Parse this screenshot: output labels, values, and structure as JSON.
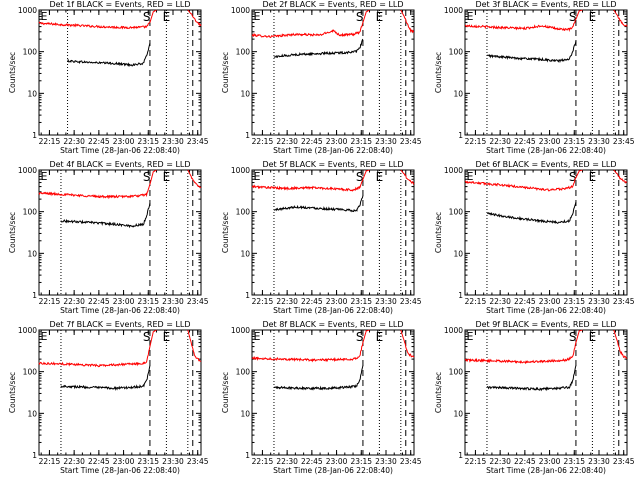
{
  "chart_data": [
    {
      "type": "line",
      "title": "Det 1f BLACK = Events, RED = LLD",
      "ylabel": "Counts/sec",
      "xlabel": "Start Time (28-Jan-06 22:08:40)",
      "yscale": "log",
      "ylim": [
        1,
        1000
      ],
      "yticks": [
        "1",
        "10",
        "100",
        "1000"
      ],
      "xlim": [
        "22:08:40",
        "23:47:00"
      ],
      "xticks": [
        "22:15",
        "22:30",
        "22:45",
        "23:00",
        "23:15",
        "23:30",
        "23:45"
      ],
      "series": [
        {
          "x": [
            "22:08:40",
            "22:30",
            "22:45",
            "23:00",
            "23:10",
            "23:14",
            "23:16",
            "23:18",
            "23:20"
          ],
          "y": [
            480,
            430,
            400,
            380,
            385,
            395,
            500,
            900,
            1000
          ]
        },
        {
          "x": [
            "22:26",
            "22:40",
            "22:55",
            "23:05",
            "23:12",
            "23:14",
            "23:16"
          ],
          "y": [
            60,
            55,
            52,
            48,
            52,
            80,
            160
          ]
        },
        {
          "x": [
            "23:39",
            "23:41",
            "23:43",
            "23:45",
            "23:47"
          ],
          "y": [
            1000,
            800,
            600,
            480,
            420
          ]
        }
      ],
      "markers": [
        {
          "label": "S",
          "time": "23:14"
        },
        {
          "label": "E",
          "time": "23:26"
        }
      ],
      "dotted_lines": [
        "22:26",
        "23:26",
        "23:39"
      ],
      "dashed_lines": [
        "23:16",
        "23:42"
      ]
    },
    {
      "type": "line",
      "title": "Det 2f BLACK = Events, RED = LLD",
      "ylabel": "Counts/sec",
      "xlabel": "Start Time (28-Jan-06 22:08:40)",
      "yscale": "log",
      "ylim": [
        1,
        1000
      ],
      "yticks": [
        "1",
        "10",
        "100",
        "1000"
      ],
      "xlim": [
        "22:08:40",
        "23:47:00"
      ],
      "xticks": [
        "22:15",
        "22:30",
        "22:45",
        "23:00",
        "23:15",
        "23:30",
        "23:45"
      ],
      "series": [
        {
          "x": [
            "22:08:40",
            "22:20",
            "22:35",
            "22:50",
            "22:58",
            "23:02",
            "23:10",
            "23:14",
            "23:16",
            "23:18",
            "23:20"
          ],
          "y": [
            250,
            230,
            260,
            250,
            320,
            250,
            260,
            290,
            500,
            900,
            1000
          ]
        },
        {
          "x": [
            "22:22",
            "22:35",
            "22:50",
            "23:05",
            "23:12",
            "23:14",
            "23:16"
          ],
          "y": [
            75,
            85,
            90,
            95,
            100,
            120,
            200
          ]
        },
        {
          "x": [
            "23:39",
            "23:41",
            "23:43",
            "23:45",
            "23:47"
          ],
          "y": [
            1000,
            700,
            450,
            320,
            300
          ]
        }
      ],
      "markers": [
        {
          "label": "S",
          "time": "23:14"
        },
        {
          "label": "E",
          "time": "23:26"
        }
      ],
      "dotted_lines": [
        "22:22",
        "23:26",
        "23:39"
      ],
      "dashed_lines": [
        "23:16",
        "23:42"
      ]
    },
    {
      "type": "line",
      "title": "Det 3f BLACK = Events, RED = LLD",
      "ylabel": "Counts/sec",
      "xlabel": "Start Time (28-Jan-06 22:08:40)",
      "yscale": "log",
      "ylim": [
        1,
        1000
      ],
      "yticks": [
        "1",
        "10",
        "100",
        "1000"
      ],
      "xlim": [
        "22:08:40",
        "23:47:00"
      ],
      "xticks": [
        "22:15",
        "22:30",
        "22:45",
        "23:00",
        "23:15",
        "23:30",
        "23:45"
      ],
      "series": [
        {
          "x": [
            "22:08:40",
            "22:30",
            "22:45",
            "22:55",
            "23:05",
            "23:12",
            "23:14",
            "23:16",
            "23:18",
            "23:20"
          ],
          "y": [
            420,
            380,
            360,
            420,
            350,
            340,
            380,
            600,
            950,
            1000
          ]
        },
        {
          "x": [
            "22:22",
            "22:40",
            "22:55",
            "23:05",
            "23:12",
            "23:14",
            "23:16"
          ],
          "y": [
            80,
            70,
            65,
            60,
            65,
            100,
            180
          ]
        },
        {
          "x": [
            "23:39",
            "23:41",
            "23:43",
            "23:45",
            "23:47"
          ],
          "y": [
            1000,
            750,
            550,
            450,
            400
          ]
        }
      ],
      "markers": [
        {
          "label": "S",
          "time": "23:14"
        },
        {
          "label": "E",
          "time": "23:26"
        }
      ],
      "dotted_lines": [
        "22:22",
        "23:26",
        "23:39"
      ],
      "dashed_lines": [
        "23:16",
        "23:42"
      ]
    },
    {
      "type": "line",
      "title": "Det 4f BLACK = Events, RED = LLD",
      "ylabel": "Counts/sec",
      "xlabel": "Start Time (28-Jan-06 22:08:40)",
      "yscale": "log",
      "ylim": [
        1,
        1000
      ],
      "yticks": [
        "1",
        "10",
        "100",
        "1000"
      ],
      "xlim": [
        "22:08:40",
        "23:47:00"
      ],
      "xticks": [
        "22:15",
        "22:30",
        "22:45",
        "23:00",
        "23:15",
        "23:30",
        "23:45"
      ],
      "series": [
        {
          "x": [
            "22:08:40",
            "22:30",
            "22:45",
            "23:00",
            "23:10",
            "23:14",
            "23:16",
            "23:18",
            "23:20"
          ],
          "y": [
            280,
            250,
            230,
            230,
            240,
            260,
            450,
            900,
            1000
          ]
        },
        {
          "x": [
            "22:22",
            "22:40",
            "22:55",
            "23:05",
            "23:12",
            "23:14",
            "23:16"
          ],
          "y": [
            60,
            55,
            50,
            45,
            50,
            80,
            160
          ]
        },
        {
          "x": [
            "23:39",
            "23:41",
            "23:43",
            "23:45",
            "23:47"
          ],
          "y": [
            1000,
            700,
            500,
            420,
            380
          ]
        }
      ],
      "markers": [
        {
          "label": "S",
          "time": "23:14"
        },
        {
          "label": "E",
          "time": "23:26"
        }
      ],
      "dotted_lines": [
        "22:22",
        "23:26",
        "23:39"
      ],
      "dashed_lines": [
        "23:16",
        "23:42"
      ]
    },
    {
      "type": "line",
      "title": "Det 5f BLACK = Events, RED = LLD",
      "ylabel": "Counts/sec",
      "xlabel": "Start Time (28-Jan-06 22:08:40)",
      "yscale": "log",
      "ylim": [
        1,
        1000
      ],
      "yticks": [
        "1",
        "10",
        "100",
        "1000"
      ],
      "xlim": [
        "22:08:40",
        "23:47:00"
      ],
      "xticks": [
        "22:15",
        "22:30",
        "22:45",
        "23:00",
        "23:15",
        "23:30",
        "23:45"
      ],
      "series": [
        {
          "x": [
            "22:08:40",
            "22:30",
            "22:45",
            "23:00",
            "23:10",
            "23:14",
            "23:16",
            "23:18",
            "23:20"
          ],
          "y": [
            400,
            360,
            380,
            350,
            330,
            380,
            600,
            950,
            1000
          ]
        },
        {
          "x": [
            "22:22",
            "22:35",
            "22:50",
            "23:05",
            "23:12",
            "23:14",
            "23:16"
          ],
          "y": [
            110,
            130,
            120,
            110,
            105,
            140,
            240
          ]
        },
        {
          "x": [
            "23:39",
            "23:41",
            "23:43",
            "23:45",
            "23:47"
          ],
          "y": [
            1000,
            800,
            600,
            520,
            480
          ]
        }
      ],
      "markers": [
        {
          "label": "S",
          "time": "23:14"
        },
        {
          "label": "E",
          "time": "23:26"
        }
      ],
      "dotted_lines": [
        "22:22",
        "23:26",
        "23:39"
      ],
      "dashed_lines": [
        "23:16",
        "23:42"
      ]
    },
    {
      "type": "line",
      "title": "Det 6f BLACK = Events, RED = LLD",
      "ylabel": "Counts/sec",
      "xlabel": "Start Time (28-Jan-06 22:08:40)",
      "yscale": "log",
      "ylim": [
        1,
        1000
      ],
      "yticks": [
        "1",
        "10",
        "100",
        "1000"
      ],
      "xlim": [
        "22:08:40",
        "23:47:00"
      ],
      "xticks": [
        "22:15",
        "22:30",
        "22:45",
        "23:00",
        "23:15",
        "23:30",
        "23:45"
      ],
      "series": [
        {
          "x": [
            "22:08:40",
            "22:30",
            "22:45",
            "23:00",
            "23:10",
            "23:14",
            "23:16",
            "23:18",
            "23:20"
          ],
          "y": [
            520,
            440,
            380,
            330,
            360,
            400,
            650,
            950,
            1000
          ]
        },
        {
          "x": [
            "22:22",
            "22:40",
            "22:55",
            "23:05",
            "23:12",
            "23:14",
            "23:16"
          ],
          "y": [
            90,
            70,
            60,
            55,
            60,
            90,
            170
          ]
        },
        {
          "x": [
            "23:39",
            "23:41",
            "23:43",
            "23:45",
            "23:47"
          ],
          "y": [
            1000,
            800,
            620,
            540,
            500
          ]
        }
      ],
      "markers": [
        {
          "label": "S",
          "time": "23:14"
        },
        {
          "label": "E",
          "time": "23:26"
        }
      ],
      "dotted_lines": [
        "22:22",
        "23:26",
        "23:39"
      ],
      "dashed_lines": [
        "23:16",
        "23:42"
      ]
    },
    {
      "type": "line",
      "title": "Det 7f BLACK = Events, RED = LLD",
      "ylabel": "Counts/sec",
      "xlabel": "Start Time (28-Jan-06 22:08:40)",
      "yscale": "log",
      "ylim": [
        1,
        1000
      ],
      "yticks": [
        "1",
        "10",
        "100",
        "1000"
      ],
      "xlim": [
        "22:08:40",
        "23:47:00"
      ],
      "xticks": [
        "22:15",
        "22:30",
        "22:45",
        "23:00",
        "23:15",
        "23:30",
        "23:45"
      ],
      "series": [
        {
          "x": [
            "22:08:40",
            "22:30",
            "22:45",
            "23:00",
            "23:10",
            "23:14",
            "23:16",
            "23:18",
            "23:20"
          ],
          "y": [
            160,
            150,
            140,
            150,
            155,
            170,
            400,
            900,
            1000
          ]
        },
        {
          "x": [
            "22:22",
            "22:40",
            "22:55",
            "23:05",
            "23:12",
            "23:14",
            "23:16"
          ],
          "y": [
            45,
            42,
            40,
            42,
            45,
            60,
            140
          ]
        },
        {
          "x": [
            "23:39",
            "23:41",
            "23:43",
            "23:45",
            "23:47"
          ],
          "y": [
            1000,
            500,
            250,
            200,
            180
          ]
        }
      ],
      "markers": [
        {
          "label": "S",
          "time": "23:14"
        },
        {
          "label": "E",
          "time": "23:26"
        }
      ],
      "dotted_lines": [
        "22:22",
        "23:26",
        "23:39"
      ],
      "dashed_lines": [
        "23:16",
        "23:42"
      ]
    },
    {
      "type": "line",
      "title": "Det 8f BLACK = Events, RED = LLD",
      "ylabel": "Counts/sec",
      "xlabel": "Start Time (28-Jan-06 22:08:40)",
      "yscale": "log",
      "ylim": [
        1,
        1000
      ],
      "yticks": [
        "1",
        "10",
        "100",
        "1000"
      ],
      "xlim": [
        "22:08:40",
        "23:47:00"
      ],
      "xticks": [
        "22:15",
        "22:30",
        "22:45",
        "23:00",
        "23:15",
        "23:30",
        "23:45"
      ],
      "series": [
        {
          "x": [
            "22:08:40",
            "22:30",
            "22:45",
            "23:00",
            "23:10",
            "23:14",
            "23:16",
            "23:18",
            "23:20"
          ],
          "y": [
            210,
            200,
            190,
            195,
            200,
            230,
            500,
            950,
            1000
          ]
        },
        {
          "x": [
            "22:22",
            "22:40",
            "22:55",
            "23:05",
            "23:12",
            "23:14",
            "23:16"
          ],
          "y": [
            42,
            40,
            40,
            42,
            45,
            60,
            140
          ]
        },
        {
          "x": [
            "23:39",
            "23:41",
            "23:43",
            "23:45",
            "23:47"
          ],
          "y": [
            1000,
            550,
            300,
            240,
            220
          ]
        }
      ],
      "markers": [
        {
          "label": "S",
          "time": "23:14"
        },
        {
          "label": "E",
          "time": "23:26"
        }
      ],
      "dotted_lines": [
        "22:22",
        "23:26",
        "23:39"
      ],
      "dashed_lines": [
        "23:16",
        "23:42"
      ]
    },
    {
      "type": "line",
      "title": "Det 9f BLACK = Events, RED = LLD",
      "ylabel": "Counts/sec",
      "xlabel": "Start Time (28-Jan-06 22:08:40)",
      "yscale": "log",
      "ylim": [
        1,
        1000
      ],
      "yticks": [
        "1",
        "10",
        "100",
        "1000"
      ],
      "xlim": [
        "22:08:40",
        "23:47:00"
      ],
      "xticks": [
        "22:15",
        "22:30",
        "22:45",
        "23:00",
        "23:15",
        "23:30",
        "23:45"
      ],
      "series": [
        {
          "x": [
            "22:08:40",
            "22:30",
            "22:45",
            "23:00",
            "23:10",
            "23:14",
            "23:16",
            "23:18",
            "23:20"
          ],
          "y": [
            190,
            180,
            170,
            180,
            190,
            220,
            500,
            950,
            1000
          ]
        },
        {
          "x": [
            "22:22",
            "22:40",
            "22:55",
            "23:05",
            "23:12",
            "23:14",
            "23:16"
          ],
          "y": [
            42,
            40,
            38,
            40,
            42,
            60,
            140
          ]
        },
        {
          "x": [
            "23:39",
            "23:41",
            "23:43",
            "23:45",
            "23:47"
          ],
          "y": [
            1000,
            550,
            300,
            230,
            210
          ]
        }
      ],
      "markers": [
        {
          "label": "S",
          "time": "23:14"
        },
        {
          "label": "E",
          "time": "23:26"
        }
      ],
      "dotted_lines": [
        "22:22",
        "23:26",
        "23:39"
      ],
      "dashed_lines": [
        "23:16",
        "23:42"
      ]
    }
  ],
  "series_colors": [
    "#ff0000",
    "#000000",
    "#ff0000"
  ]
}
